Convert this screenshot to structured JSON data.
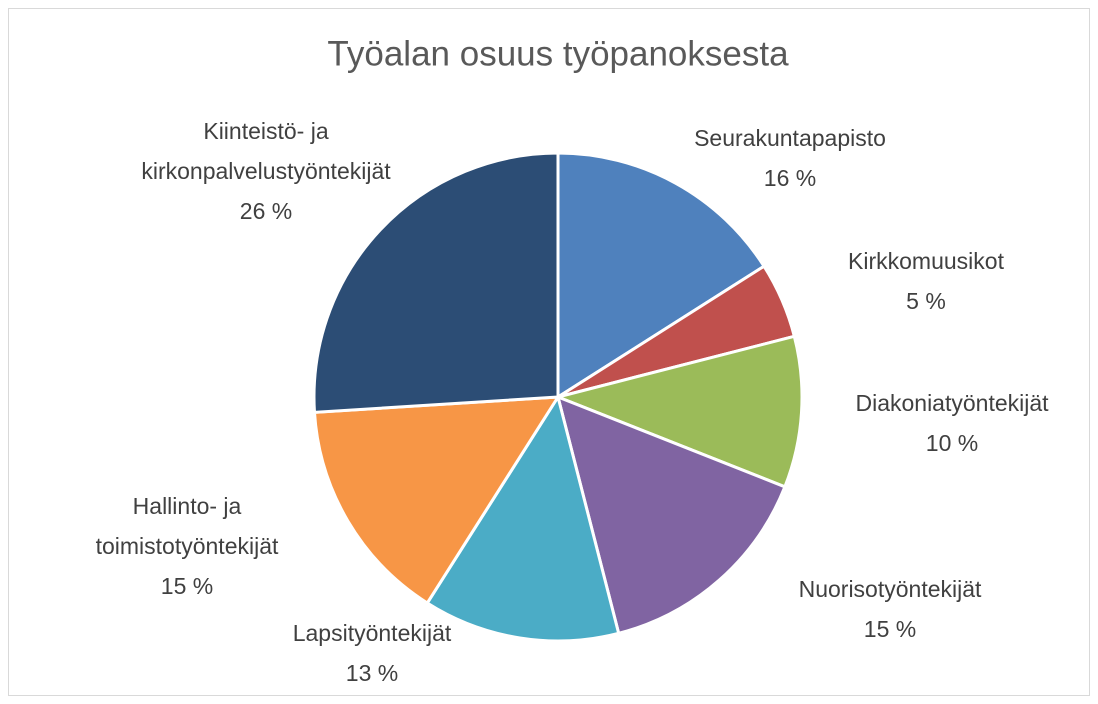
{
  "chart_data": {
    "type": "pie",
    "title": "Työalan osuus työpanoksesta",
    "categories": [
      "Seurakuntapapisto",
      "Kirkkomuusikot",
      "Diakoniatyöntekijät",
      "Nuorisotyöntekijät",
      "Lapsityöntekijät",
      "Hallinto- ja\ntoimistotyöntekijät",
      "Kiinteistö- ja\nkirkonpalvelustyöntekijät"
    ],
    "values": [
      16,
      5,
      10,
      15,
      13,
      15,
      26
    ],
    "value_labels": [
      "16 %",
      "5 %",
      "10 %",
      "15 %",
      "13 %",
      "15 %",
      "26 %"
    ],
    "colors": [
      "#4f81bd",
      "#c0504d",
      "#9bbb59",
      "#8064a2",
      "#4bacc6",
      "#f79646",
      "#2c4d75"
    ]
  }
}
